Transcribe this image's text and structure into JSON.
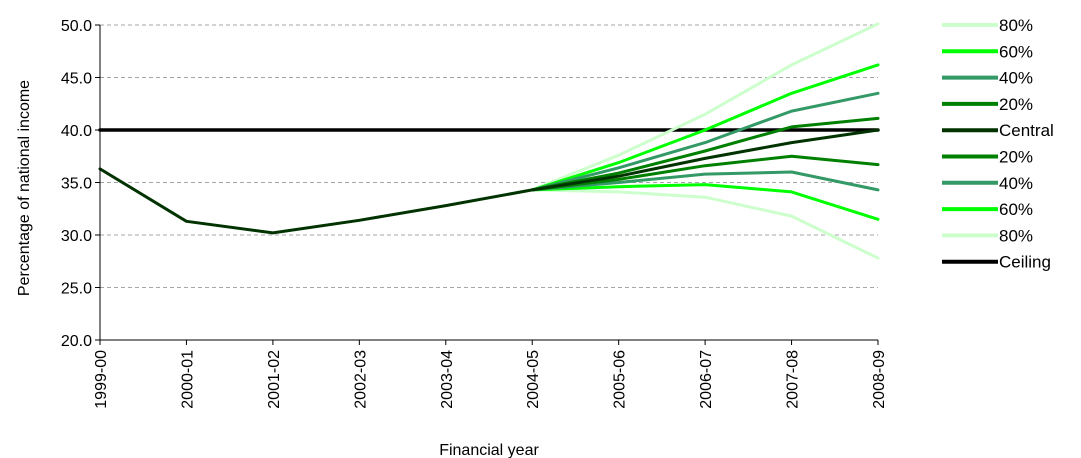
{
  "chart_data": {
    "type": "line",
    "xlabel": "Financial year",
    "ylabel": "Percentage of national income",
    "ylim": [
      20.0,
      50.0
    ],
    "y_ticks": [
      "20.0",
      "25.0",
      "30.0",
      "35.0",
      "40.0",
      "45.0",
      "50.0"
    ],
    "grid": "horizontal dashed",
    "legend_position": "right",
    "categories": [
      "1999-00",
      "2000-01",
      "2001-02",
      "2002-03",
      "2003-04",
      "2004-05",
      "2005-06",
      "2006-07",
      "2007-08",
      "2008-09"
    ],
    "series": [
      {
        "name": "80%",
        "color": "#ccffcc",
        "values": [
          null,
          null,
          null,
          null,
          null,
          34.3,
          37.6,
          41.5,
          46.2,
          50.1
        ]
      },
      {
        "name": "60%",
        "color": "#00ff00",
        "values": [
          null,
          null,
          null,
          null,
          null,
          34.3,
          36.9,
          40.0,
          43.5,
          46.2
        ]
      },
      {
        "name": "40%",
        "color": "#339966",
        "values": [
          null,
          null,
          null,
          null,
          null,
          34.3,
          36.4,
          38.8,
          41.8,
          43.5
        ]
      },
      {
        "name": "20%",
        "color": "#008000",
        "values": [
          null,
          null,
          null,
          null,
          null,
          34.3,
          35.9,
          38.0,
          40.3,
          41.1
        ]
      },
      {
        "name": "Central",
        "color": "#003300",
        "values": [
          36.3,
          31.3,
          30.2,
          31.4,
          32.8,
          34.3,
          35.6,
          37.3,
          38.8,
          40.0
        ]
      },
      {
        "name": "20%",
        "color": "#008000",
        "values": [
          null,
          null,
          null,
          null,
          null,
          34.3,
          35.3,
          36.6,
          37.5,
          36.7
        ]
      },
      {
        "name": "40%",
        "color": "#339966",
        "values": [
          null,
          null,
          null,
          null,
          null,
          34.3,
          35.0,
          35.8,
          36.0,
          34.3
        ]
      },
      {
        "name": "60%",
        "color": "#00ff00",
        "values": [
          null,
          null,
          null,
          null,
          null,
          34.3,
          34.6,
          34.8,
          34.1,
          31.5
        ]
      },
      {
        "name": "80%",
        "color": "#ccffcc",
        "values": [
          null,
          null,
          null,
          null,
          null,
          34.3,
          34.1,
          33.6,
          31.8,
          27.8
        ]
      },
      {
        "name": "Ceiling",
        "color": "#000000",
        "values": [
          40.0,
          40.0,
          40.0,
          40.0,
          40.0,
          40.0,
          40.0,
          40.0,
          40.0,
          40.0
        ]
      }
    ]
  }
}
